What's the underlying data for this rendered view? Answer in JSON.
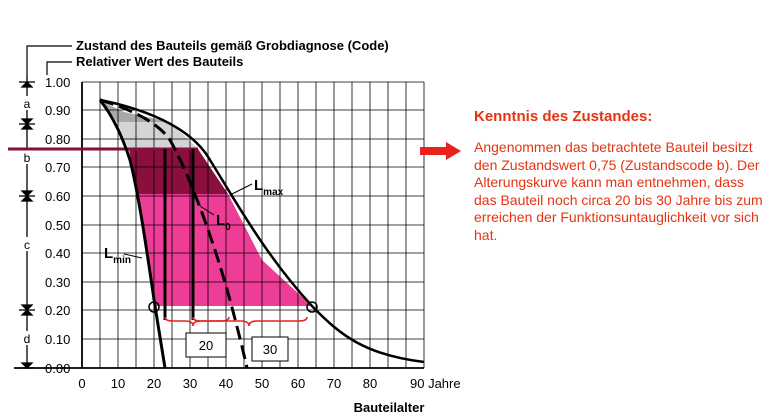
{
  "diagram": {
    "header_code": "Zustand des Bauteils gemäß Grobdiagnose (Code)",
    "header_value": "Relativer Wert des Bauteils",
    "y_ticks": [
      "1.00",
      "0.90",
      "0.80",
      "0.70",
      "0.60",
      "0.50",
      "0.40",
      "0.30",
      "0.20",
      "0.10",
      "0.00"
    ],
    "x_ticks": [
      "0",
      "10",
      "20",
      "30",
      "40",
      "50",
      "60",
      "70",
      "80"
    ],
    "x_last_tick": "90 Jahre",
    "x_label": "Bauteilalter",
    "condition_codes": [
      "a",
      "b",
      "c",
      "d"
    ],
    "curve_labels": {
      "max_main": "L",
      "max_sub": "max",
      "zero_main": "L",
      "zero_sub": "0",
      "min_main": "L",
      "min_sub": "min"
    },
    "annotations": [
      "20",
      "30"
    ],
    "current_value": 0.75,
    "colors": {
      "max_band": "#8a0f3c",
      "pink_area": "#ee3d96",
      "grey_top": "#a8a8a8",
      "grey_mid": "#d4d4d4",
      "arrow": "#e8211d",
      "text_accent": "#e63312"
    }
  },
  "panel": {
    "title": "Kenntnis des Zustandes:",
    "text": "Angenommen das betrachtete Bauteil besitzt den Zustandswert 0,75 (Zustandscode b). Der Alterungskurve kann man entnehmen, dass das Bauteil noch circa 20 bis 30 Jahre bis zum erreichen der Funktionsuntauglichkeit vor sich hat."
  }
}
